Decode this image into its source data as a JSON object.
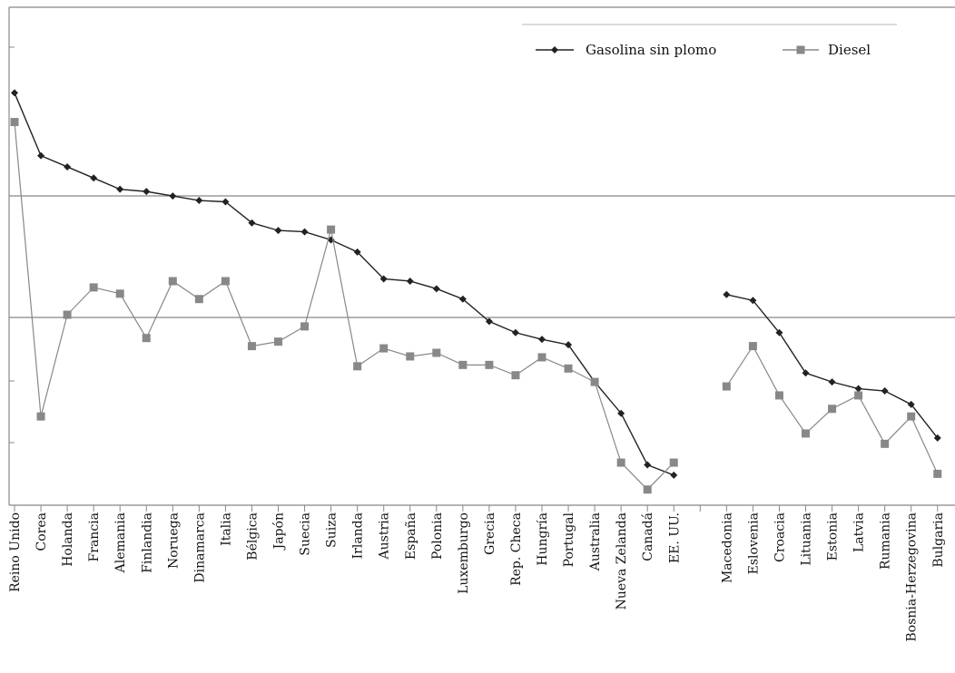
{
  "chart_data": {
    "type": "line",
    "title": "",
    "xlabel": "",
    "ylabel": "",
    "grid": "horizontal",
    "legend_position": "top-right",
    "categories": [
      "Reino Unido",
      "Corea",
      "Holanda",
      "Francia",
      "Alemania",
      "Finlandia",
      "Noruega",
      "Dinamarca",
      "Italia",
      "Bélgica",
      "Japón",
      "Suecia",
      "Suiza",
      "Irlanda",
      "Austria",
      "España",
      "Polonia",
      "Luxemburgo",
      "Grecia",
      "Rep. Checa",
      "Hungría",
      "Portugal",
      "Australia",
      "Nueva Zelanda",
      "Canadá",
      "EE. UU.",
      "",
      "Macedonia",
      "Eslovenia",
      "Croacia",
      "Lituania",
      "Estonia",
      "Latvia",
      "Rumania",
      "Bosnia-Herzegovina",
      "Bulgaria"
    ],
    "ylim": [
      0,
      100
    ],
    "series": [
      {
        "name": "Gasolina sin plomo",
        "color": "#222222",
        "marker": "diamond",
        "values": [
          92,
          78,
          75.5,
          73,
          70.5,
          70,
          69,
          68,
          67.7,
          63,
          61.3,
          61,
          59.2,
          56.5,
          50.5,
          50,
          48.3,
          46,
          41,
          38.5,
          37,
          35.8,
          27.5,
          20.5,
          9,
          6.7,
          null,
          47,
          45.7,
          38.5,
          29.5,
          27.5,
          26,
          25.5,
          22.5,
          15
        ]
      },
      {
        "name": "Diesel",
        "color": "#888888",
        "marker": "square",
        "values": [
          85.5,
          19.8,
          42.5,
          48.6,
          47.2,
          37.3,
          50,
          46,
          50,
          35.5,
          36.5,
          39.9,
          61.5,
          31,
          35,
          33.2,
          34,
          31.3,
          31.3,
          29,
          33,
          30.5,
          27.5,
          9.5,
          3.5,
          9.5,
          null,
          26.5,
          35.5,
          24.5,
          16,
          21.5,
          24.5,
          13.7,
          19.8,
          7
        ]
      }
    ]
  }
}
